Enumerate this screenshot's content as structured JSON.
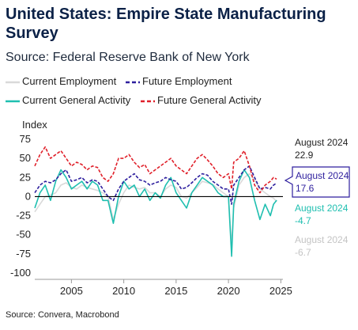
{
  "title": "United States: Empire State Manufacturing Survey",
  "subtitle": "Source: Federal Reserve Bank of New York",
  "footer": "Source: Convera, Macrobond",
  "colors": {
    "current_employment": "#d9d9d9",
    "future_employment": "#2e1f9e",
    "current_general_activity": "#1fbfb0",
    "future_general_activity": "#e0202a",
    "zero_line": "#000000",
    "grid": "#e6e6e6"
  },
  "chart_data": {
    "type": "line",
    "ylabel": "Index",
    "ylim": [
      -100,
      75
    ],
    "yticks": [
      75,
      50,
      25,
      0,
      -25,
      -50,
      -75,
      -100
    ],
    "xlim": [
      2001.5,
      2025.2
    ],
    "xticks": [
      2005,
      2010,
      2015,
      2020,
      2025
    ],
    "grid": false,
    "legend_placement": "top",
    "series": [
      {
        "name": "Current Employment",
        "key": "current_employment",
        "style": "solid",
        "x": [
          2001.5,
          2002,
          2002.5,
          2003,
          2003.5,
          2004,
          2004.5,
          2005,
          2005.5,
          2006,
          2006.5,
          2007,
          2007.5,
          2008,
          2008.5,
          2009,
          2009.5,
          2010,
          2010.5,
          2011,
          2011.5,
          2012,
          2012.5,
          2013,
          2013.5,
          2014,
          2014.5,
          2015,
          2015.5,
          2016,
          2016.5,
          2017,
          2017.5,
          2018,
          2018.5,
          2019,
          2019.5,
          2020,
          2020.3,
          2020.5,
          2021,
          2021.5,
          2022,
          2022.5,
          2023,
          2023.5,
          2024,
          2024.3,
          2024.6
        ],
        "y": [
          -20,
          -10,
          0,
          2,
          5,
          15,
          18,
          12,
          10,
          15,
          12,
          10,
          8,
          5,
          0,
          -30,
          -10,
          5,
          15,
          12,
          10,
          12,
          5,
          5,
          0,
          10,
          15,
          12,
          0,
          -2,
          5,
          12,
          20,
          18,
          16,
          10,
          5,
          0,
          -65,
          -15,
          15,
          25,
          30,
          22,
          10,
          5,
          0,
          -2,
          -6.7
        ],
        "end_label": "August 2024",
        "end_value": "-6.7"
      },
      {
        "name": "Future Employment",
        "key": "future_employment",
        "style": "dashed",
        "x": [
          2001.5,
          2002,
          2002.5,
          2003,
          2003.5,
          2004,
          2004.5,
          2005,
          2005.5,
          2006,
          2006.5,
          2007,
          2007.5,
          2008,
          2008.5,
          2009,
          2009.5,
          2010,
          2010.5,
          2011,
          2011.5,
          2012,
          2012.5,
          2013,
          2013.5,
          2014,
          2014.5,
          2015,
          2015.5,
          2016,
          2016.5,
          2017,
          2017.5,
          2018,
          2018.5,
          2019,
          2019.5,
          2020,
          2020.3,
          2020.5,
          2021,
          2021.5,
          2022,
          2022.5,
          2023,
          2023.5,
          2024,
          2024.3,
          2024.6
        ],
        "y": [
          5,
          15,
          20,
          18,
          22,
          30,
          35,
          20,
          22,
          25,
          18,
          22,
          20,
          10,
          0,
          -5,
          10,
          20,
          25,
          30,
          22,
          20,
          15,
          18,
          20,
          25,
          22,
          20,
          10,
          12,
          18,
          25,
          30,
          28,
          20,
          15,
          10,
          10,
          -10,
          15,
          25,
          35,
          40,
          25,
          10,
          12,
          10,
          15,
          17.6
        ],
        "end_label": "August 2024",
        "end_value": "17.6"
      },
      {
        "name": "Current General Activity",
        "key": "current_general_activity",
        "style": "solid",
        "x": [
          2001.5,
          2002,
          2002.5,
          2003,
          2003.5,
          2004,
          2004.5,
          2005,
          2005.5,
          2006,
          2006.5,
          2007,
          2007.5,
          2008,
          2008.5,
          2009,
          2009.5,
          2010,
          2010.5,
          2011,
          2011.5,
          2012,
          2012.5,
          2013,
          2013.5,
          2014,
          2014.5,
          2015,
          2015.5,
          2016,
          2016.5,
          2017,
          2017.5,
          2018,
          2018.5,
          2019,
          2019.5,
          2020,
          2020.3,
          2020.5,
          2021,
          2021.5,
          2022,
          2022.5,
          2023,
          2023.5,
          2024,
          2024.3,
          2024.6
        ],
        "y": [
          -15,
          5,
          15,
          -5,
          20,
          35,
          25,
          10,
          15,
          20,
          10,
          20,
          15,
          -5,
          -5,
          -35,
          0,
          20,
          10,
          15,
          0,
          10,
          -5,
          5,
          -2,
          15,
          25,
          5,
          -5,
          -15,
          5,
          15,
          25,
          20,
          15,
          5,
          0,
          0,
          -78,
          -10,
          20,
          35,
          25,
          -5,
          -30,
          -10,
          -25,
          -10,
          -4.7
        ],
        "end_label": "August 2024",
        "end_value": "-4.7"
      },
      {
        "name": "Future General Activity",
        "key": "future_general_activity",
        "style": "dashed",
        "x": [
          2001.5,
          2002,
          2002.5,
          2003,
          2003.5,
          2004,
          2004.5,
          2005,
          2005.5,
          2006,
          2006.5,
          2007,
          2007.5,
          2008,
          2008.5,
          2009,
          2009.5,
          2010,
          2010.5,
          2011,
          2011.5,
          2012,
          2012.5,
          2013,
          2013.5,
          2014,
          2014.5,
          2015,
          2015.5,
          2016,
          2016.5,
          2017,
          2017.5,
          2018,
          2018.5,
          2019,
          2019.5,
          2020,
          2020.3,
          2020.5,
          2021,
          2021.5,
          2022,
          2022.5,
          2023,
          2023.5,
          2024,
          2024.3,
          2024.6
        ],
        "y": [
          40,
          55,
          65,
          50,
          55,
          60,
          50,
          40,
          45,
          42,
          35,
          40,
          38,
          25,
          20,
          30,
          50,
          50,
          55,
          45,
          38,
          42,
          30,
          35,
          40,
          45,
          50,
          40,
          35,
          30,
          40,
          50,
          55,
          48,
          40,
          30,
          25,
          30,
          10,
          45,
          50,
          60,
          40,
          15,
          5,
          15,
          20,
          25,
          22.9
        ],
        "end_label": "August 2024",
        "end_value": "22.9"
      }
    ]
  }
}
